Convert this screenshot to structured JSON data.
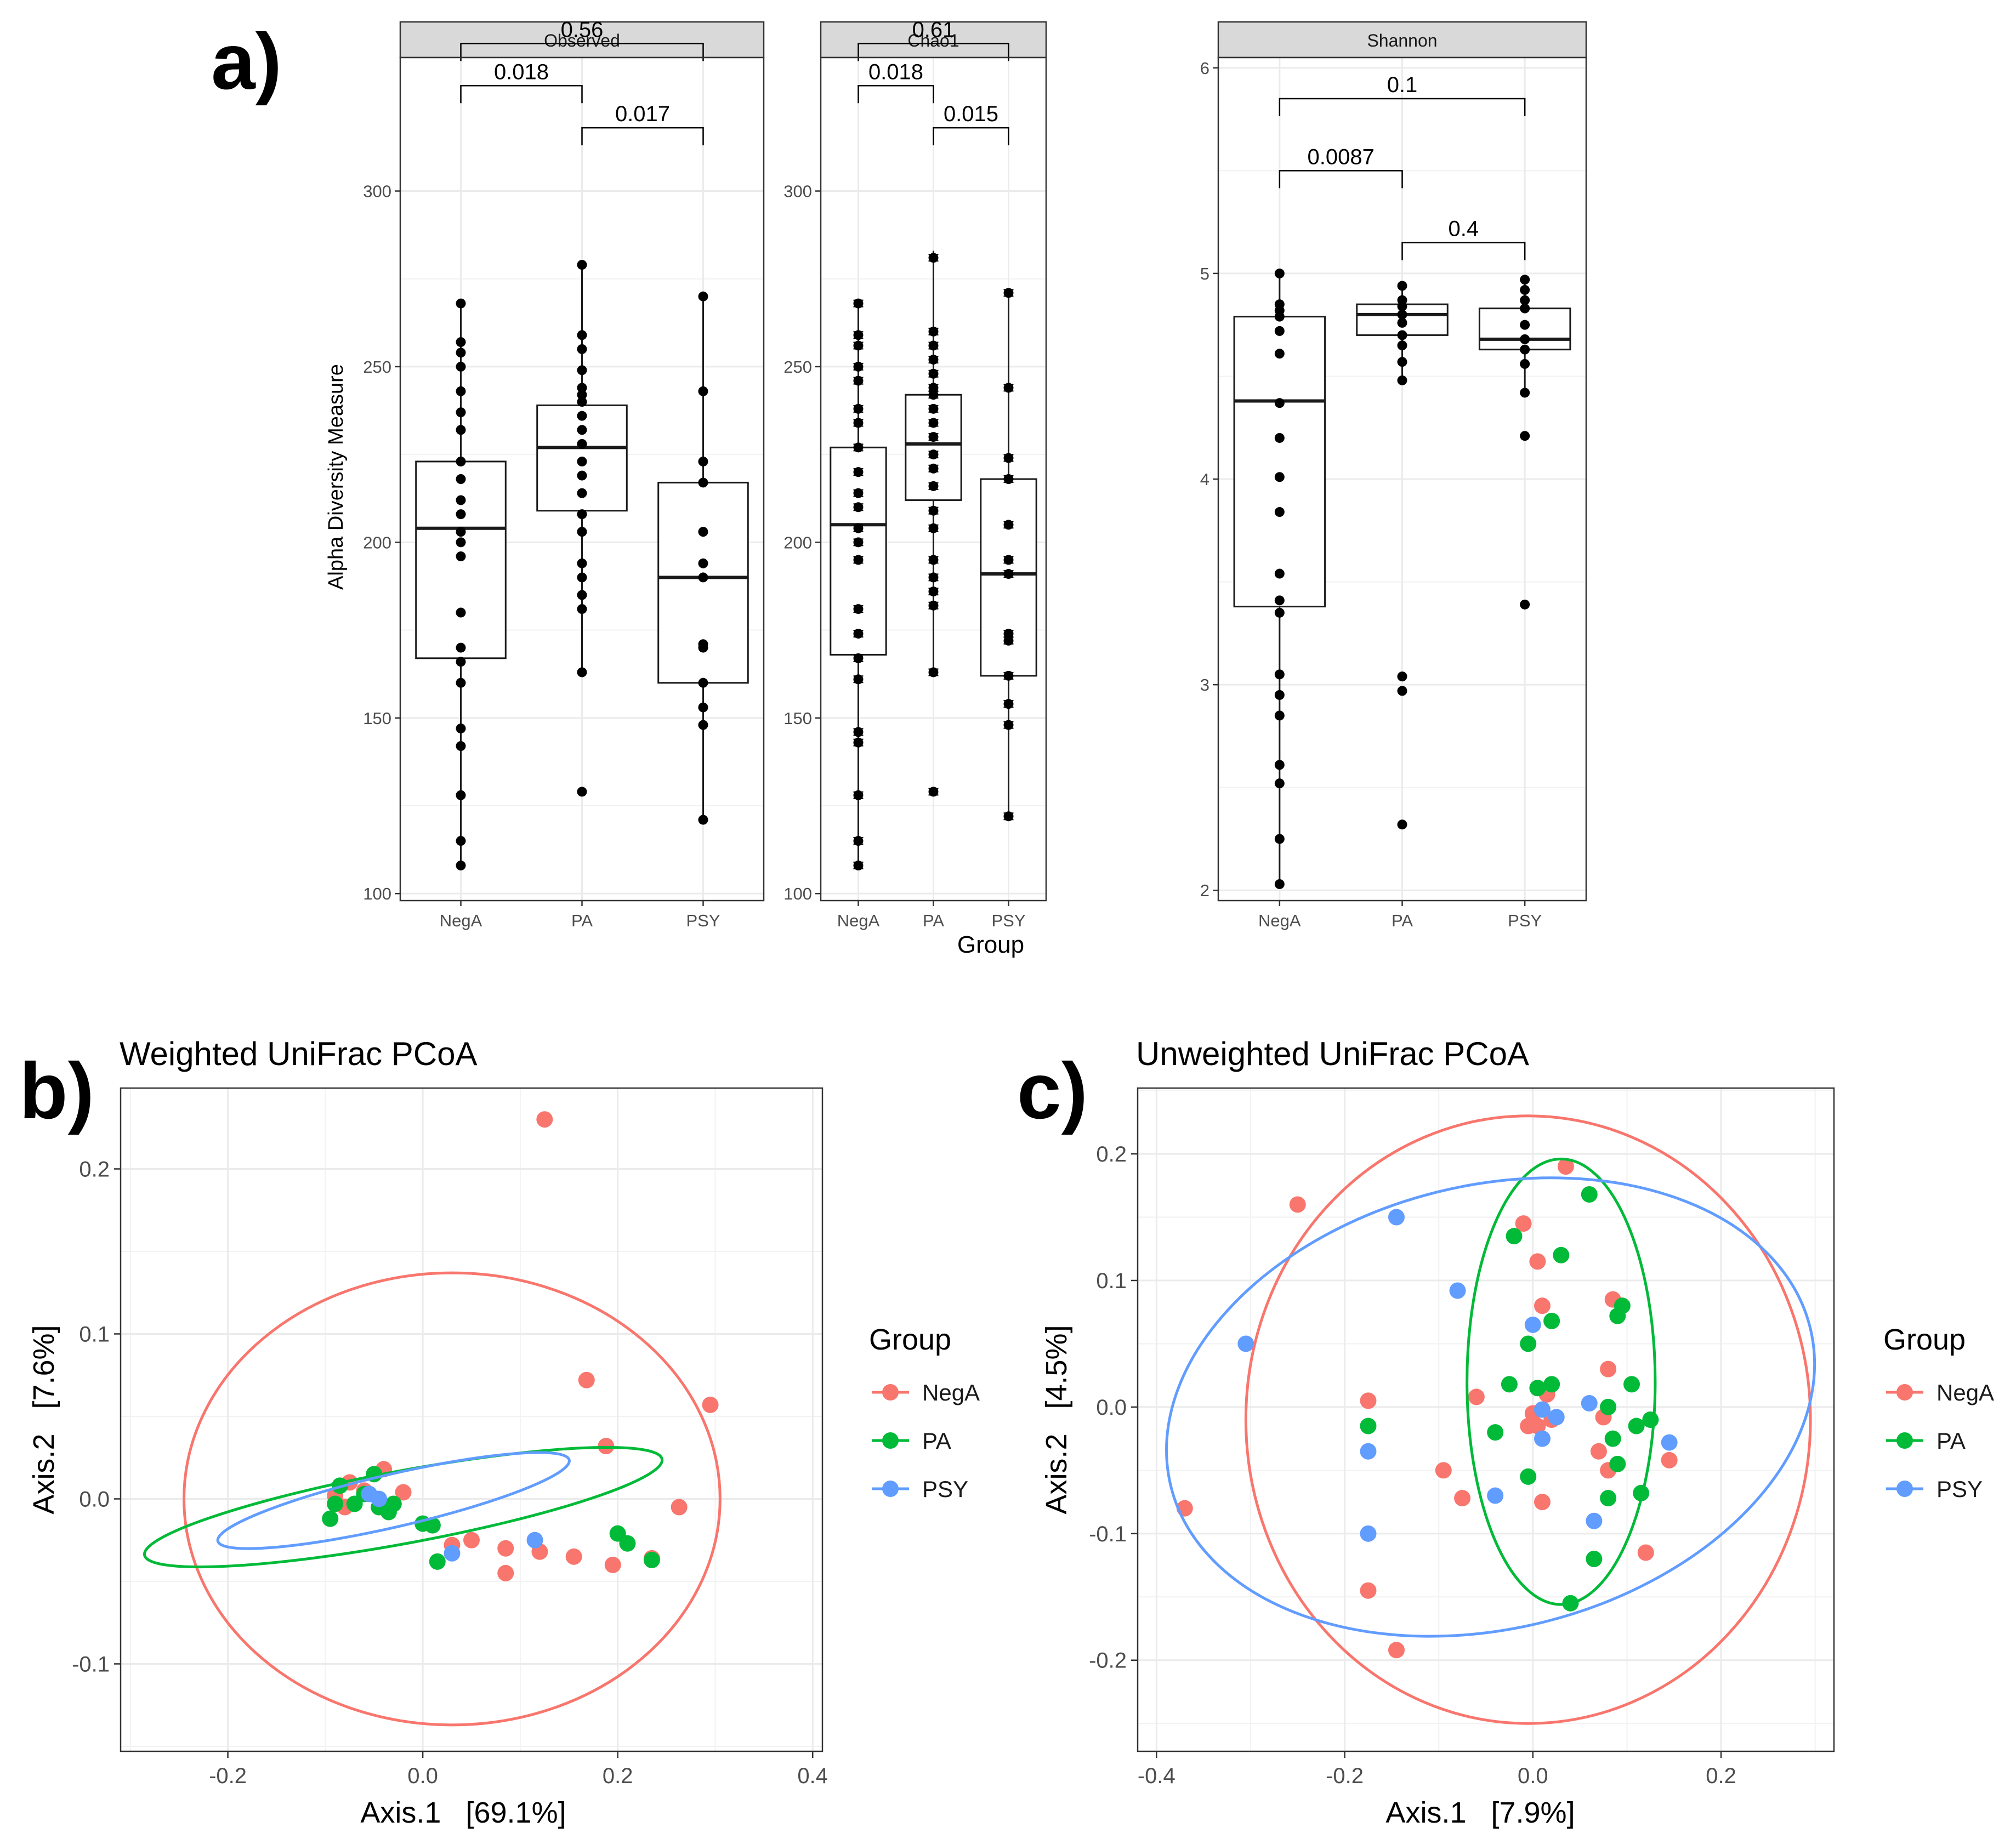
{
  "panel_labels": {
    "a": "a)",
    "b": "b)",
    "c": "c)"
  },
  "colors": {
    "NegA": "#F8766D",
    "PA": "#00BA38",
    "PSY": "#619CFF",
    "strip": "#D9D9D9",
    "grid": "#EBEBEB",
    "ink": "#000000",
    "tick_text": "#4D4D4D"
  },
  "chart_data": [
    {
      "id": "alpha",
      "type": "box",
      "ylabel": "Alpha Diversity Measure",
      "xlabel": "Group",
      "categories": [
        "NegA",
        "PA",
        "PSY"
      ],
      "facets": [
        {
          "name": "Observed",
          "ylim": [
            98,
            338
          ],
          "yticks": [
            100,
            150,
            200,
            250,
            300
          ],
          "boxes": [
            {
              "q1": 167,
              "median": 204,
              "q3": 223,
              "wlow": 108,
              "whigh": 268
            },
            {
              "q1": 209,
              "median": 227,
              "q3": 239,
              "wlow": 163,
              "whigh": 279
            },
            {
              "q1": 160,
              "median": 190,
              "q3": 217,
              "wlow": 121,
              "whigh": 270
            }
          ],
          "points": [
            [
              108,
              115,
              128,
              142,
              147,
              160,
              166,
              170,
              180,
              196,
              200,
              203,
              208,
              212,
              218,
              223,
              232,
              237,
              243,
              250,
              254,
              257,
              268
            ],
            [
              129,
              163,
              181,
              185,
              190,
              194,
              203,
              208,
              214,
              219,
              223,
              228,
              232,
              236,
              240,
              242,
              244,
              249,
              255,
              259,
              279
            ],
            [
              121,
              148,
              153,
              160,
              170,
              171,
              190,
              194,
              203,
              217,
              223,
              243,
              270
            ]
          ],
          "brackets": [
            {
              "from": 0,
              "to": 1,
              "y": 330,
              "label": "0.018"
            },
            {
              "from": 1,
              "to": 2,
              "y": 318,
              "label": "0.017"
            },
            {
              "from": 0,
              "to": 2,
              "y": 342,
              "label": "0.56"
            }
          ]
        },
        {
          "name": "Chao1",
          "ylim": [
            98,
            338
          ],
          "yticks": [
            100,
            150,
            200,
            250,
            300
          ],
          "boxes": [
            {
              "q1": 168,
              "median": 205,
              "q3": 227,
              "wlow": 108,
              "whigh": 268
            },
            {
              "q1": 212,
              "median": 228,
              "q3": 242,
              "wlow": 163,
              "whigh": 283
            },
            {
              "q1": 162,
              "median": 191,
              "q3": 218,
              "wlow": 122,
              "whigh": 271
            }
          ],
          "points": [
            [
              108,
              115,
              128,
              143,
              146,
              161,
              167,
              174,
              181,
              195,
              200,
              204,
              210,
              214,
              220,
              227,
              234,
              238,
              246,
              250,
              256,
              259,
              268
            ],
            [
              129,
              163,
              182,
              186,
              190,
              195,
              204,
              209,
              216,
              221,
              225,
              230,
              234,
              238,
              242,
              244,
              248,
              252,
              256,
              260,
              281
            ],
            [
              122,
              148,
              154,
              162,
              172,
              174,
              191,
              195,
              205,
              218,
              224,
              244,
              271
            ]
          ],
          "brackets": [
            {
              "from": 0,
              "to": 1,
              "y": 330,
              "label": "0.018"
            },
            {
              "from": 1,
              "to": 2,
              "y": 318,
              "label": "0.015"
            },
            {
              "from": 0,
              "to": 2,
              "y": 342,
              "label": "0.61"
            }
          ]
        },
        {
          "name": "Shannon",
          "ylim": [
            1.95,
            6.05
          ],
          "yticks": [
            2,
            3,
            4,
            5,
            6
          ],
          "boxes": [
            {
              "q1": 3.38,
              "median": 4.38,
              "q3": 4.79,
              "wlow": 2.03,
              "whigh": 5.0
            },
            {
              "q1": 4.7,
              "median": 4.8,
              "q3": 4.85,
              "wlow": 4.48,
              "whigh": 4.94
            },
            {
              "q1": 4.63,
              "median": 4.68,
              "q3": 4.83,
              "wlow": 4.42,
              "whigh": 4.97
            }
          ],
          "points": [
            [
              2.03,
              2.25,
              2.52,
              2.61,
              2.85,
              2.95,
              3.05,
              3.35,
              3.41,
              3.54,
              3.84,
              4.01,
              4.2,
              4.37,
              4.61,
              4.72,
              4.79,
              4.82,
              4.85,
              5.0
            ],
            [
              2.32,
              2.97,
              3.04,
              4.48,
              4.57,
              4.65,
              4.7,
              4.76,
              4.8,
              4.84,
              4.87,
              4.94
            ],
            [
              3.39,
              4.21,
              4.42,
              4.56,
              4.63,
              4.68,
              4.75,
              4.83,
              4.87,
              4.92,
              4.97
            ]
          ],
          "brackets": [
            {
              "from": 0,
              "to": 1,
              "y": 5.5,
              "label": "0.0087"
            },
            {
              "from": 1,
              "to": 2,
              "y": 5.15,
              "label": "0.4"
            },
            {
              "from": 0,
              "to": 2,
              "y": 5.85,
              "label": "0.1"
            }
          ]
        }
      ]
    },
    {
      "id": "weighted",
      "type": "scatter",
      "title": "Weighted UniFrac PCoA",
      "xlabel": "Axis.1   [69.1%]",
      "ylabel": "Axis.2   [7.6%]",
      "xlim": [
        -0.31,
        0.41
      ],
      "ylim": [
        -0.153,
        0.249
      ],
      "xticks": [
        -0.2,
        0.0,
        0.2,
        0.4
      ],
      "xtick_labels": [
        "-0.2",
        "0.0",
        "0.2",
        "0.4"
      ],
      "yticks": [
        -0.1,
        0.0,
        0.1,
        0.2
      ],
      "ytick_labels": [
        "-0.1",
        "0.0",
        "0.1",
        "0.2"
      ],
      "legend": {
        "title": "Group",
        "entries": [
          "NegA",
          "PA",
          "PSY"
        ]
      },
      "series": [
        {
          "name": "NegA",
          "points": [
            [
              0.125,
              0.23
            ],
            [
              0.168,
              0.072
            ],
            [
              0.295,
              0.057
            ],
            [
              0.188,
              0.032
            ],
            [
              0.263,
              -0.005
            ],
            [
              -0.04,
              0.018
            ],
            [
              -0.075,
              0.01
            ],
            [
              -0.06,
              0.005
            ],
            [
              -0.08,
              -0.005
            ],
            [
              -0.09,
              0.002
            ],
            [
              -0.02,
              0.004
            ],
            [
              0.03,
              -0.028
            ],
            [
              0.05,
              -0.025
            ],
            [
              0.085,
              -0.03
            ],
            [
              0.12,
              -0.032
            ],
            [
              0.155,
              -0.035
            ],
            [
              0.195,
              -0.04
            ],
            [
              0.085,
              -0.045
            ],
            [
              0.235,
              -0.036
            ]
          ]
        },
        {
          "name": "PA",
          "points": [
            [
              -0.095,
              -0.012
            ],
            [
              -0.09,
              -0.003
            ],
            [
              -0.085,
              0.008
            ],
            [
              -0.07,
              -0.003
            ],
            [
              -0.06,
              0.003
            ],
            [
              -0.05,
              0.015
            ],
            [
              -0.045,
              -0.005
            ],
            [
              -0.035,
              -0.008
            ],
            [
              -0.03,
              -0.003
            ],
            [
              0.0,
              -0.015
            ],
            [
              0.01,
              -0.016
            ],
            [
              0.015,
              -0.038
            ],
            [
              0.2,
              -0.021
            ],
            [
              0.21,
              -0.027
            ],
            [
              0.235,
              -0.037
            ]
          ]
        },
        {
          "name": "PSY",
          "points": [
            [
              -0.055,
              0.003
            ],
            [
              -0.045,
              0.0
            ],
            [
              0.03,
              -0.033
            ],
            [
              0.115,
              -0.025
            ]
          ]
        }
      ],
      "ellipses": [
        {
          "name": "NegA",
          "cx": 0.03,
          "cy": 0.0,
          "rx": 0.275,
          "ry": 0.137,
          "rot": 0
        },
        {
          "name": "PA",
          "cx": -0.02,
          "cy": -0.005,
          "rx": 0.27,
          "ry": 0.022,
          "rot": -10.5
        },
        {
          "name": "PSY",
          "cx": -0.03,
          "cy": -0.001,
          "rx": 0.185,
          "ry": 0.016,
          "rot": -13
        }
      ]
    },
    {
      "id": "unweighted",
      "type": "scatter",
      "title": "Unweighted UniFrac PCoA",
      "xlabel": "Axis.1   [7.9%]",
      "ylabel": "Axis.2   [4.5%]",
      "xlim": [
        -0.42,
        0.32
      ],
      "ylim": [
        -0.272,
        0.252
      ],
      "xticks": [
        -0.4,
        -0.2,
        0.0,
        0.2
      ],
      "xtick_labels": [
        "-0.4",
        "-0.2",
        "0.0",
        "0.2"
      ],
      "yticks": [
        -0.2,
        -0.1,
        0.0,
        0.1,
        0.2
      ],
      "ytick_labels": [
        "-0.2",
        "-0.1",
        "0.0",
        "0.1",
        "0.2"
      ],
      "legend": {
        "title": "Group",
        "entries": [
          "NegA",
          "PA",
          "PSY"
        ]
      },
      "series": [
        {
          "name": "NegA",
          "points": [
            [
              -0.25,
              0.16
            ],
            [
              -0.37,
              -0.08
            ],
            [
              -0.175,
              0.005
            ],
            [
              -0.175,
              -0.145
            ],
            [
              -0.145,
              -0.192
            ],
            [
              -0.095,
              -0.05
            ],
            [
              -0.075,
              -0.072
            ],
            [
              -0.06,
              0.008
            ],
            [
              -0.01,
              0.145
            ],
            [
              0.005,
              0.115
            ],
            [
              0.01,
              0.08
            ],
            [
              0.035,
              0.19
            ],
            [
              0.085,
              0.085
            ],
            [
              0.08,
              0.03
            ],
            [
              0.075,
              -0.008
            ],
            [
              0.08,
              -0.05
            ],
            [
              0.12,
              -0.115
            ],
            [
              0.145,
              -0.042
            ],
            [
              0.0,
              -0.005
            ],
            [
              0.005,
              -0.015
            ],
            [
              0.01,
              -0.075
            ],
            [
              0.015,
              0.01
            ],
            [
              0.02,
              -0.01
            ],
            [
              -0.005,
              -0.015
            ],
            [
              0.07,
              -0.035
            ]
          ]
        },
        {
          "name": "PA",
          "points": [
            [
              0.06,
              0.168
            ],
            [
              0.03,
              0.12
            ],
            [
              -0.02,
              0.135
            ],
            [
              0.02,
              0.068
            ],
            [
              -0.005,
              0.05
            ],
            [
              -0.025,
              0.018
            ],
            [
              0.005,
              0.015
            ],
            [
              0.02,
              0.018
            ],
            [
              0.09,
              0.072
            ],
            [
              0.095,
              0.08
            ],
            [
              0.105,
              0.018
            ],
            [
              0.08,
              0.0
            ],
            [
              0.085,
              -0.025
            ],
            [
              0.11,
              -0.015
            ],
            [
              0.125,
              -0.01
            ],
            [
              0.09,
              -0.045
            ],
            [
              0.08,
              -0.072
            ],
            [
              0.115,
              -0.068
            ],
            [
              0.065,
              -0.12
            ],
            [
              0.04,
              -0.155
            ],
            [
              -0.005,
              -0.055
            ],
            [
              -0.04,
              -0.02
            ],
            [
              -0.175,
              -0.015
            ]
          ]
        },
        {
          "name": "PSY",
          "points": [
            [
              -0.145,
              0.15
            ],
            [
              -0.305,
              0.05
            ],
            [
              -0.08,
              0.092
            ],
            [
              0.0,
              0.065
            ],
            [
              -0.175,
              -0.035
            ],
            [
              -0.175,
              -0.1
            ],
            [
              -0.04,
              -0.07
            ],
            [
              0.01,
              -0.002
            ],
            [
              0.01,
              -0.025
            ],
            [
              0.025,
              -0.008
            ],
            [
              0.06,
              0.003
            ],
            [
              0.065,
              -0.09
            ],
            [
              0.145,
              -0.028
            ]
          ]
        }
      ],
      "ellipses": [
        {
          "name": "NegA",
          "cx": -0.005,
          "cy": -0.01,
          "rx": 0.3,
          "ry": 0.24,
          "rot": 0
        },
        {
          "name": "PA",
          "cx": 0.03,
          "cy": 0.02,
          "rx": 0.1,
          "ry": 0.176,
          "rot": 0
        },
        {
          "name": "PSY",
          "cx": -0.045,
          "cy": 0.0,
          "rx": 0.35,
          "ry": 0.175,
          "rot": -14
        }
      ]
    }
  ]
}
